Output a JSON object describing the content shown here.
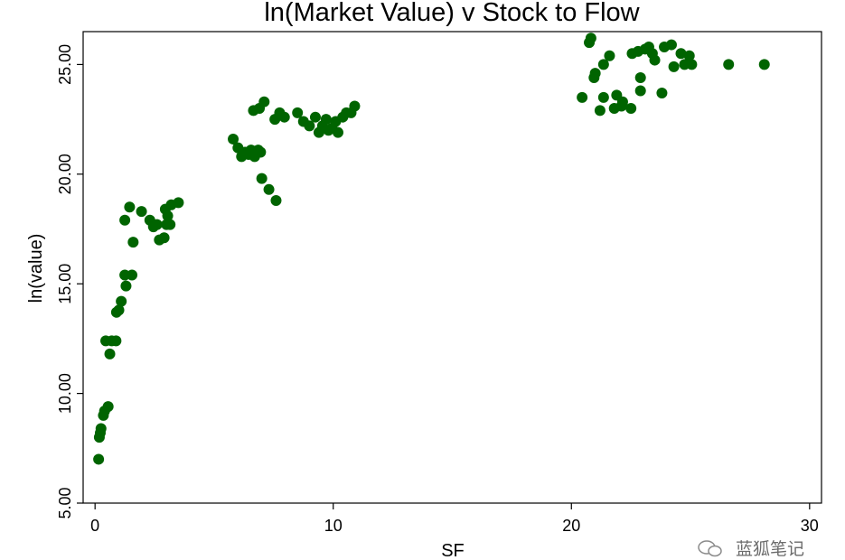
{
  "chart_data": {
    "type": "scatter",
    "title": "ln(Market Value) v Stock to Flow",
    "xlabel": "SF",
    "ylabel": "ln(value)",
    "xlim": [
      -0.5,
      30.5
    ],
    "ylim": [
      5.0,
      26.5
    ],
    "xticks": [
      0,
      10,
      20,
      30
    ],
    "xtick_labels": [
      "0",
      "10",
      "20",
      "30"
    ],
    "yticks": [
      5,
      10,
      15,
      20,
      25
    ],
    "ytick_labels": [
      "5.00",
      "10.00",
      "15.00",
      "20.00",
      "25.00"
    ],
    "grid": false,
    "marker_color": "#006400",
    "series": [
      {
        "points": [
          [
            0.15,
            7.0
          ],
          [
            0.18,
            8.0
          ],
          [
            0.22,
            8.2
          ],
          [
            0.25,
            8.4
          ],
          [
            0.35,
            9.0
          ],
          [
            0.4,
            9.2
          ],
          [
            0.55,
            9.4
          ],
          [
            0.45,
            12.4
          ],
          [
            0.62,
            11.8
          ],
          [
            0.7,
            12.4
          ],
          [
            0.88,
            12.4
          ],
          [
            0.9,
            13.7
          ],
          [
            1.0,
            13.8
          ],
          [
            1.1,
            14.2
          ],
          [
            1.3,
            14.9
          ],
          [
            1.25,
            15.4
          ],
          [
            1.55,
            15.4
          ],
          [
            1.25,
            17.9
          ],
          [
            1.45,
            18.5
          ],
          [
            1.6,
            16.9
          ],
          [
            1.95,
            18.3
          ],
          [
            2.3,
            17.9
          ],
          [
            2.45,
            17.6
          ],
          [
            2.6,
            17.7
          ],
          [
            2.7,
            17.0
          ],
          [
            2.9,
            17.1
          ],
          [
            2.95,
            18.4
          ],
          [
            3.05,
            18.1
          ],
          [
            3.0,
            17.7
          ],
          [
            3.15,
            17.7
          ],
          [
            3.2,
            18.6
          ],
          [
            3.5,
            18.7
          ],
          [
            5.8,
            21.6
          ],
          [
            6.0,
            21.2
          ],
          [
            6.15,
            20.8
          ],
          [
            6.3,
            21.0
          ],
          [
            6.45,
            20.9
          ],
          [
            6.55,
            21.1
          ],
          [
            6.7,
            20.8
          ],
          [
            6.85,
            21.1
          ],
          [
            6.95,
            21.0
          ],
          [
            7.0,
            19.8
          ],
          [
            7.3,
            19.3
          ],
          [
            7.6,
            18.8
          ],
          [
            6.65,
            22.9
          ],
          [
            6.9,
            23.0
          ],
          [
            7.1,
            23.3
          ],
          [
            7.55,
            22.5
          ],
          [
            7.75,
            22.8
          ],
          [
            7.95,
            22.6
          ],
          [
            8.5,
            22.8
          ],
          [
            8.75,
            22.4
          ],
          [
            9.0,
            22.2
          ],
          [
            9.25,
            22.6
          ],
          [
            9.4,
            21.9
          ],
          [
            9.55,
            22.2
          ],
          [
            9.7,
            22.5
          ],
          [
            9.8,
            22.0
          ],
          [
            9.95,
            22.1
          ],
          [
            10.1,
            22.4
          ],
          [
            10.2,
            21.9
          ],
          [
            10.4,
            22.6
          ],
          [
            10.55,
            22.8
          ],
          [
            10.75,
            22.8
          ],
          [
            10.9,
            23.1
          ],
          [
            20.45,
            23.5
          ],
          [
            20.75,
            26.0
          ],
          [
            20.82,
            26.2
          ],
          [
            20.95,
            24.4
          ],
          [
            21.0,
            24.6
          ],
          [
            21.2,
            22.9
          ],
          [
            21.35,
            25.0
          ],
          [
            21.35,
            23.5
          ],
          [
            21.6,
            25.4
          ],
          [
            21.8,
            23.0
          ],
          [
            21.9,
            23.6
          ],
          [
            22.1,
            23.1
          ],
          [
            22.15,
            23.3
          ],
          [
            22.5,
            23.0
          ],
          [
            22.55,
            25.5
          ],
          [
            22.8,
            25.6
          ],
          [
            22.9,
            24.4
          ],
          [
            22.9,
            23.8
          ],
          [
            23.1,
            25.7
          ],
          [
            23.25,
            25.8
          ],
          [
            23.4,
            25.5
          ],
          [
            23.5,
            25.2
          ],
          [
            23.8,
            23.7
          ],
          [
            23.9,
            25.8
          ],
          [
            24.2,
            25.9
          ],
          [
            24.3,
            24.9
          ],
          [
            24.6,
            25.5
          ],
          [
            24.75,
            25.0
          ],
          [
            24.95,
            25.4
          ],
          [
            25.05,
            25.0
          ],
          [
            26.6,
            25.0
          ],
          [
            28.1,
            25.0
          ]
        ]
      }
    ]
  },
  "watermark": {
    "text": "蓝狐笔记",
    "icon": "wechat-icon"
  }
}
